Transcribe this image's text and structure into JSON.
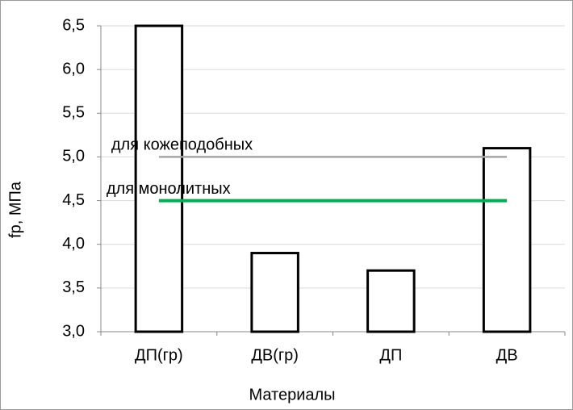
{
  "chart_data": {
    "type": "bar",
    "categories": [
      "ДП(гр)",
      "ДВ(гр)",
      "ДП",
      "ДВ"
    ],
    "values": [
      6.5,
      3.9,
      3.7,
      5.1
    ],
    "color": "#ffffff",
    "edge_color": "#000000",
    "ylim": [
      3.0,
      6.5
    ],
    "yticks": [
      {
        "value": 3.0,
        "label": "3,0"
      },
      {
        "value": 3.5,
        "label": "3,5"
      },
      {
        "value": 4.0,
        "label": "4,0"
      },
      {
        "value": 4.5,
        "label": "4,5"
      },
      {
        "value": 5.0,
        "label": "5,0"
      },
      {
        "value": 5.5,
        "label": "5,5"
      },
      {
        "value": 6.0,
        "label": "6,0"
      },
      {
        "value": 6.5,
        "label": "6,5"
      }
    ],
    "grid": true,
    "y_label": "fp, МПа",
    "x_label": "Материалы",
    "reference_lines": [
      {
        "name": "для кожеподобных",
        "value": 5.0,
        "color": "#a6a6a6"
      },
      {
        "name": "для монолитных",
        "value": 4.5,
        "color": "#00b050"
      }
    ]
  }
}
